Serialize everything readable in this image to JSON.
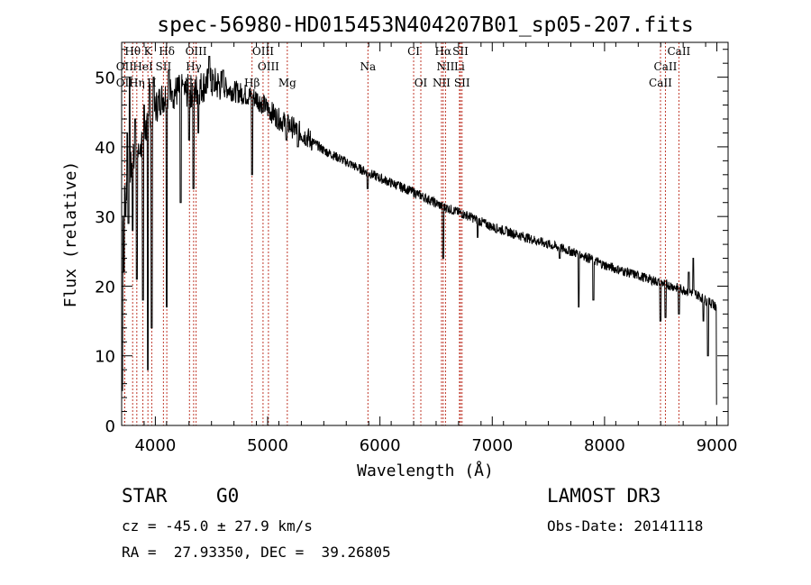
{
  "chart_data": {
    "type": "line",
    "title": "spec-56980-HD015453N404207B01_sp05-207.fits",
    "xlabel": "Wavelength (Å)",
    "ylabel": "Flux (relative)",
    "xlim": [
      3700,
      9100
    ],
    "ylim": [
      0,
      55
    ],
    "x_ticks": [
      4000,
      5000,
      6000,
      7000,
      8000,
      9000
    ],
    "y_ticks": [
      0,
      10,
      20,
      30,
      40,
      50
    ],
    "continuum": [
      [
        3700,
        30
      ],
      [
        3760,
        36
      ],
      [
        3850,
        40
      ],
      [
        3950,
        44
      ],
      [
        4050,
        47
      ],
      [
        4200,
        48
      ],
      [
        4350,
        48
      ],
      [
        4450,
        49
      ],
      [
        4550,
        49
      ],
      [
        4700,
        48
      ],
      [
        4900,
        47
      ],
      [
        5100,
        44
      ],
      [
        5300,
        42
      ],
      [
        5500,
        39.5
      ],
      [
        5800,
        37
      ],
      [
        6000,
        35.5
      ],
      [
        6300,
        33.5
      ],
      [
        6550,
        31.5
      ],
      [
        6800,
        30
      ],
      [
        7000,
        28.5
      ],
      [
        7300,
        27
      ],
      [
        7600,
        25.5
      ],
      [
        7800,
        24.5
      ],
      [
        8000,
        23
      ],
      [
        8300,
        21.5
      ],
      [
        8600,
        20
      ],
      [
        8800,
        19
      ],
      [
        9000,
        17
      ]
    ],
    "series": [
      {
        "name": "flux",
        "features": [
          {
            "x": 3705,
            "y": 5
          },
          {
            "x": 3720,
            "y": 22
          },
          {
            "x": 3735,
            "y": 30
          },
          {
            "x": 3750,
            "y": 42
          },
          {
            "x": 3760,
            "y": 29
          },
          {
            "x": 3770,
            "y": 50
          },
          {
            "x": 3798,
            "y": 28
          },
          {
            "x": 3820,
            "y": 44
          },
          {
            "x": 3835,
            "y": 21
          },
          {
            "x": 3860,
            "y": 39
          },
          {
            "x": 3889,
            "y": 18
          },
          {
            "x": 3900,
            "y": 46
          },
          {
            "x": 3933,
            "y": 8
          },
          {
            "x": 3950,
            "y": 49
          },
          {
            "x": 3968,
            "y": 14
          },
          {
            "x": 3985,
            "y": 50
          },
          {
            "x": 4101,
            "y": 17
          },
          {
            "x": 4120,
            "y": 51
          },
          {
            "x": 4150,
            "y": 48
          },
          {
            "x": 4226,
            "y": 32
          },
          {
            "x": 4250,
            "y": 49
          },
          {
            "x": 4300,
            "y": 41
          },
          {
            "x": 4340,
            "y": 34
          },
          {
            "x": 4383,
            "y": 42
          },
          {
            "x": 4480,
            "y": 53
          },
          {
            "x": 4525,
            "y": 48
          },
          {
            "x": 4603,
            "y": 51
          },
          {
            "x": 4861,
            "y": 36
          },
          {
            "x": 4957,
            "y": 45
          },
          {
            "x": 5167,
            "y": 41
          },
          {
            "x": 5270,
            "y": 40
          },
          {
            "x": 5890,
            "y": 34
          },
          {
            "x": 6563,
            "y": 24
          },
          {
            "x": 6870,
            "y": 27
          },
          {
            "x": 7600,
            "y": 24
          },
          {
            "x": 7770,
            "y": 17
          },
          {
            "x": 7900,
            "y": 18
          },
          {
            "x": 8498,
            "y": 15
          },
          {
            "x": 8542,
            "y": 15.5
          },
          {
            "x": 8662,
            "y": 16
          },
          {
            "x": 8750,
            "y": 22
          },
          {
            "x": 8790,
            "y": 24
          },
          {
            "x": 8880,
            "y": 15
          },
          {
            "x": 8920,
            "y": 10
          },
          {
            "x": 8960,
            "y": 18
          },
          {
            "x": 9000,
            "y": 3
          }
        ]
      }
    ],
    "lines": [
      {
        "label": "Hθ",
        "x": 3798,
        "row": 0
      },
      {
        "label": "K",
        "x": 3934,
        "row": 0
      },
      {
        "label": "Hδ",
        "x": 4102,
        "row": 0
      },
      {
        "label": "OIII",
        "x": 4363,
        "row": 0
      },
      {
        "label": "OIII",
        "x": 4959,
        "row": 0
      },
      {
        "label": "CI",
        "x": 6300,
        "row": 0
      },
      {
        "label": "Hα",
        "x": 6563,
        "row": 0
      },
      {
        "label": "SII",
        "x": 6717,
        "row": 0
      },
      {
        "label": "CaII",
        "x": 8662,
        "row": 0
      },
      {
        "label": "OII",
        "x": 3727,
        "row": 1
      },
      {
        "label": "HeI",
        "x": 3889,
        "row": 1
      },
      {
        "label": "SII",
        "x": 4072,
        "row": 1
      },
      {
        "label": "Hγ",
        "x": 4341,
        "row": 1
      },
      {
        "label": "OIII",
        "x": 5007,
        "row": 1
      },
      {
        "label": "Na",
        "x": 5893,
        "row": 1
      },
      {
        "label": "NII",
        "x": 6584,
        "row": 1
      },
      {
        "label": "Li",
        "x": 6708,
        "row": 1
      },
      {
        "label": "CaII",
        "x": 8542,
        "row": 1
      },
      {
        "label": "OII",
        "x": 3727,
        "row": 2
      },
      {
        "label": "Hη",
        "x": 3835,
        "row": 2
      },
      {
        "label": "H",
        "x": 3968,
        "row": 2
      },
      {
        "label": "G",
        "x": 4304,
        "row": 2
      },
      {
        "label": "Hβ",
        "x": 4861,
        "row": 2
      },
      {
        "label": "Mg",
        "x": 5175,
        "row": 2
      },
      {
        "label": "OI",
        "x": 6364,
        "row": 2
      },
      {
        "label": "NII",
        "x": 6548,
        "row": 2
      },
      {
        "label": "SII",
        "x": 6731,
        "row": 2
      },
      {
        "label": "CaII",
        "x": 8498,
        "row": 2
      }
    ]
  },
  "info": {
    "class": "STAR",
    "subclass": "G0",
    "survey": "LAMOST DR3",
    "cz": "cz = -45.0 ± 27.9 km/s",
    "obs_date": "Obs-Date: 20141118",
    "coords": "RA =  27.93350, DEC =  39.26805"
  }
}
